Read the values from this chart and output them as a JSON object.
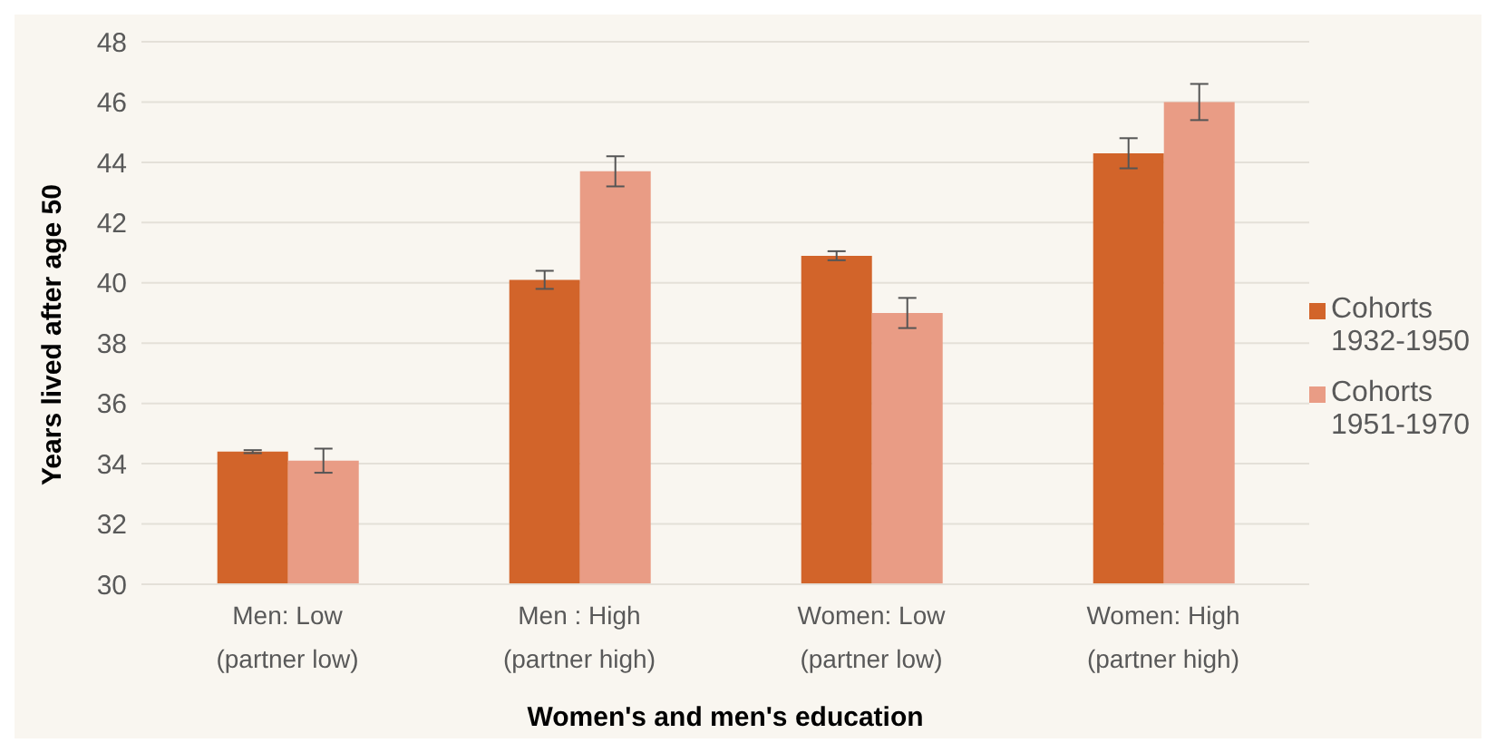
{
  "chart_data": {
    "type": "bar",
    "xlabel": "Women's and men's education",
    "ylabel": "Years lived after age 50",
    "categories": [
      "Men: Low\n(partner low)",
      "Men : High\n(partner high)",
      "Women: Low\n(partner low)",
      "Women: High\n(partner high)"
    ],
    "series": [
      {
        "name": "Cohorts 1932-1950",
        "color": "#d2642a",
        "values": [
          34.4,
          40.1,
          40.9,
          44.3
        ],
        "errors": [
          0.05,
          0.3,
          0.15,
          0.5
        ]
      },
      {
        "name": "Cohorts 1951-1970",
        "color": "#e99c85",
        "values": [
          34.1,
          43.7,
          39.0,
          46.0
        ],
        "errors": [
          0.4,
          0.5,
          0.5,
          0.6
        ]
      }
    ],
    "ylim": [
      30,
      48
    ],
    "yticks": [
      30,
      32,
      34,
      36,
      38,
      40,
      42,
      44,
      46,
      48
    ],
    "grid": "y",
    "legend": "right"
  }
}
